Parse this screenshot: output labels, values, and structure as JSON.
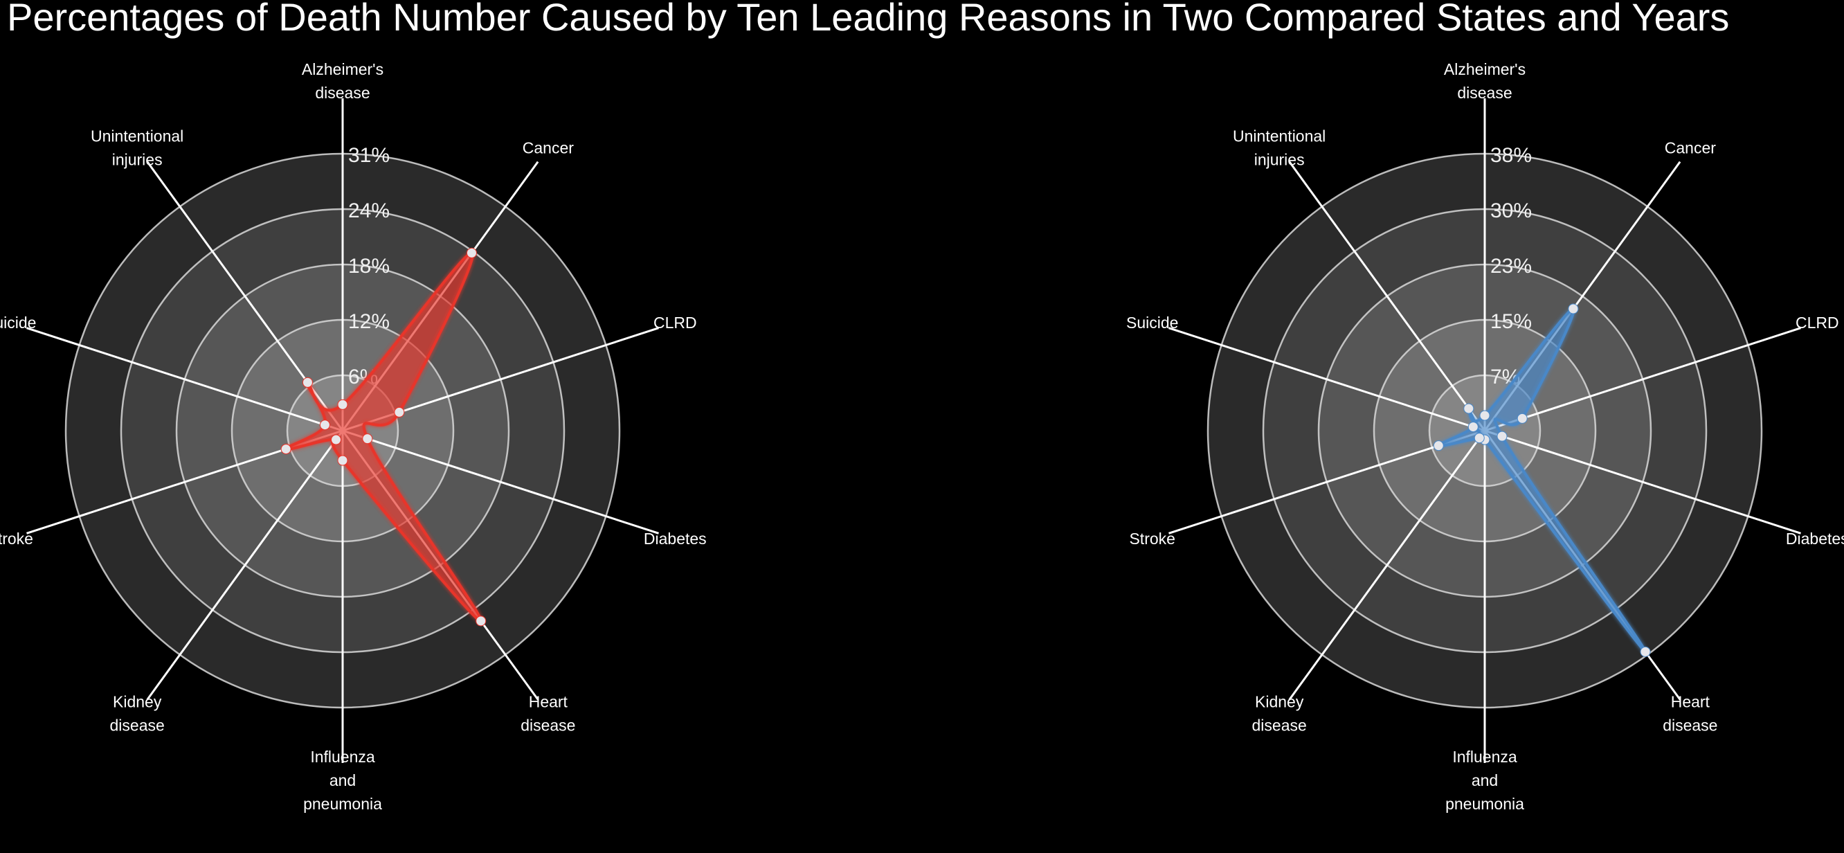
{
  "title": "Percentages of Death Number Caused by Ten Leading Reasons in Two Compared States and Years",
  "chart_data": [
    {
      "type": "radar",
      "axes": [
        [
          "Alzheimer's",
          "disease"
        ],
        [
          "Cancer"
        ],
        [
          "CLRD"
        ],
        [
          "Diabetes"
        ],
        [
          "Heart",
          "disease"
        ],
        [
          "Influenza",
          "and",
          "pneumonia"
        ],
        [
          "Kidney",
          "disease"
        ],
        [
          "Stroke"
        ],
        [
          "Suicide"
        ],
        [
          "Unintentional",
          "injuries"
        ]
      ],
      "ticks": [
        "6%",
        "12%",
        "18%",
        "24%",
        "31%"
      ],
      "rmax": 37.2,
      "values": [
        3.5,
        29.5,
        8.0,
        3.5,
        31.6,
        4.0,
        1.5,
        8.0,
        2.5,
        8.0
      ],
      "color": "#e8342a",
      "grid": true,
      "legend": "none"
    },
    {
      "type": "radar",
      "axes": [
        [
          "Alzheimer's",
          "disease"
        ],
        [
          "Cancer"
        ],
        [
          "CLRD"
        ],
        [
          "Diabetes"
        ],
        [
          "Heart",
          "disease"
        ],
        [
          "Influenza",
          "and",
          "pneumonia"
        ],
        [
          "Kidney",
          "disease"
        ],
        [
          "Stroke"
        ],
        [
          "Suicide"
        ],
        [
          "Unintentional",
          "injuries"
        ]
      ],
      "ticks": [
        "7%",
        "15%",
        "23%",
        "30%",
        "38%"
      ],
      "rmax": 45.6,
      "values": [
        2.5,
        24.8,
        6.5,
        3.0,
        45.0,
        1.5,
        1.5,
        8.0,
        2.0,
        4.5
      ],
      "color": "#4a88c8",
      "grid": true,
      "legend": "none"
    }
  ]
}
